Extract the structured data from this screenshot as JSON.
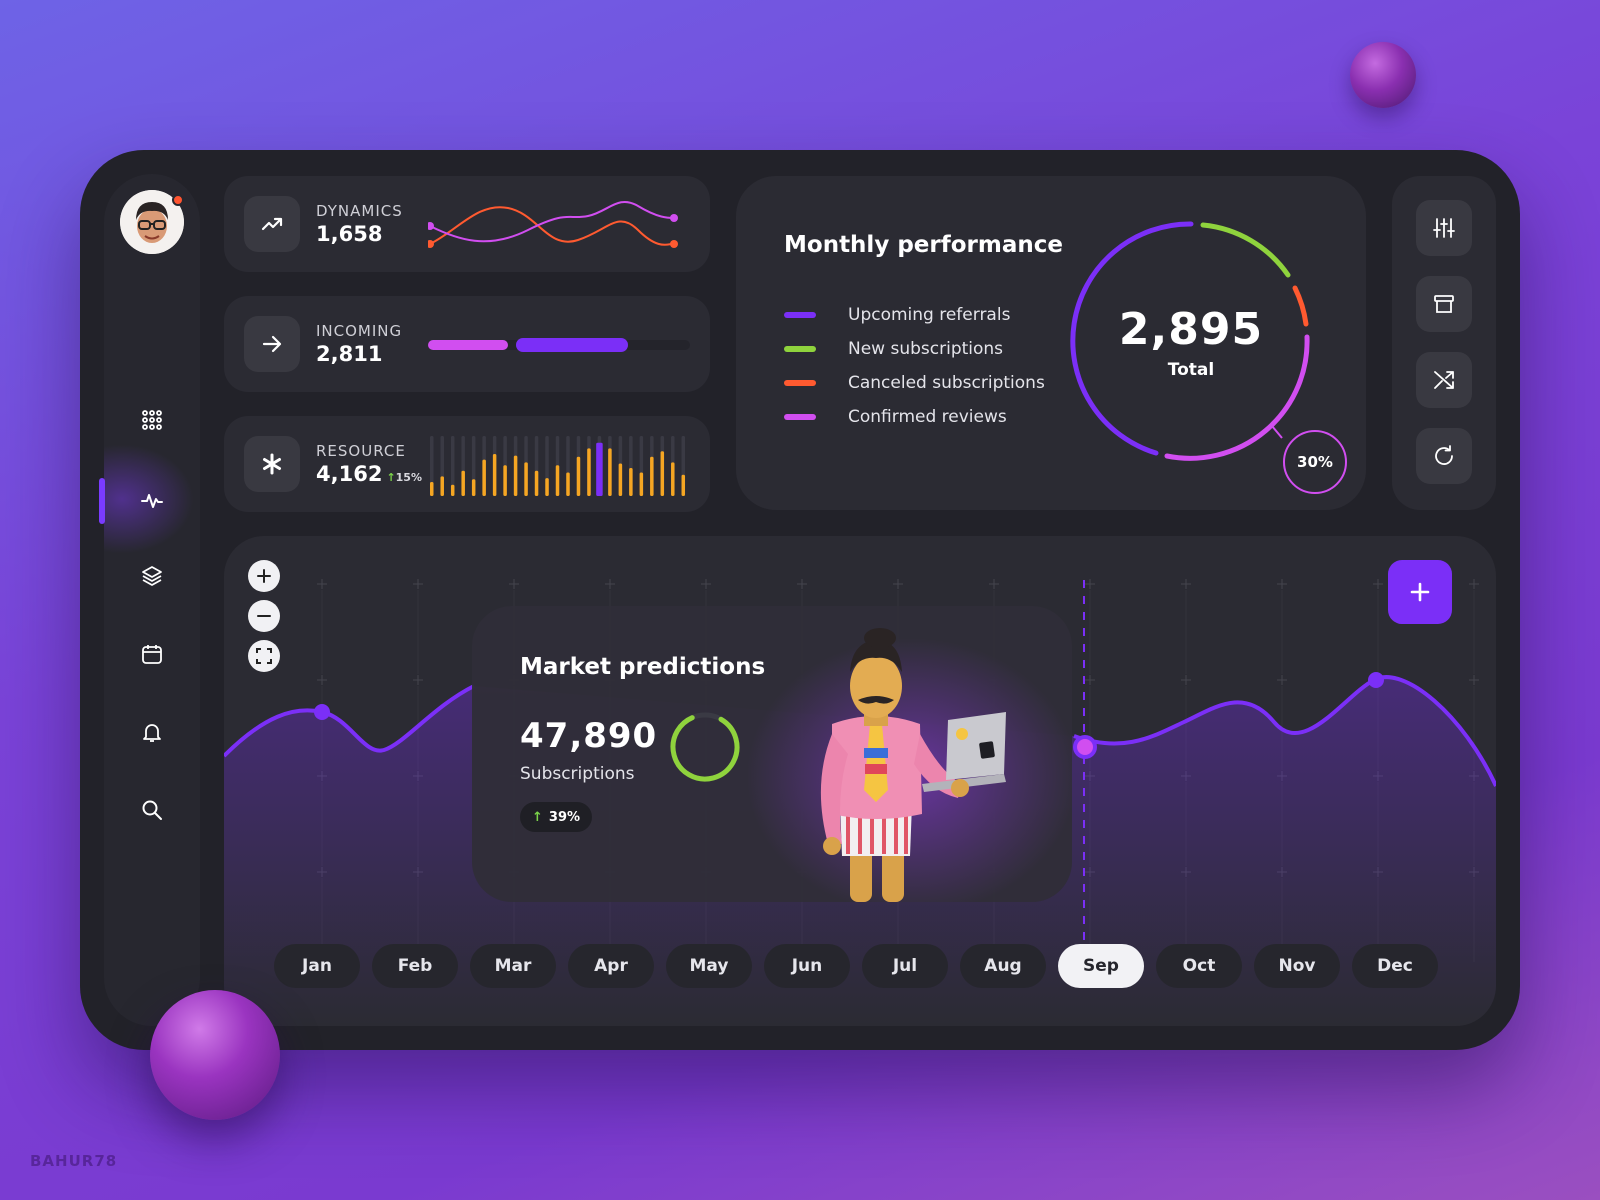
{
  "stats": {
    "dynamics": {
      "label": "DYNAMICS",
      "value": "1,658",
      "icon": "trend-up-icon"
    },
    "incoming": {
      "label": "INCOMING",
      "value": "2,811",
      "icon": "arrow-right-icon",
      "progress_fraction": 0.52
    },
    "resource": {
      "label": "RESOURCE",
      "value": "4,162",
      "change": "15%",
      "icon": "asterisk-icon"
    }
  },
  "performance": {
    "title": "Monthly performance",
    "legend": [
      {
        "label": "Upcoming referrals",
        "color": "#7b2ff7"
      },
      {
        "label": "New subscriptions",
        "color": "#8fd33d"
      },
      {
        "label": "Canceled subscriptions",
        "color": "#ff5a30"
      },
      {
        "label": "Confirmed reviews",
        "color": "#d14ef0"
      }
    ],
    "total_value": "2,895",
    "total_label": "Total",
    "percent": "30%"
  },
  "toolbar": {
    "items": [
      "sliders-icon",
      "archive-icon",
      "shuffle-icon",
      "refresh-icon"
    ]
  },
  "sidebar": {
    "items": [
      "grid-icon",
      "activity-icon",
      "layers-icon",
      "calendar-icon",
      "bell-icon",
      "search-icon"
    ],
    "active": "activity-icon"
  },
  "market": {
    "title": "Market predictions",
    "value": "47,890",
    "caption": "Subscriptions",
    "change": "39%",
    "ring_fraction": 0.85,
    "zoom": [
      "plus-icon",
      "minus-icon",
      "fit-screen-icon"
    ],
    "add_icon": "plus-icon"
  },
  "months": {
    "items": [
      "Jan",
      "Feb",
      "Mar",
      "Apr",
      "May",
      "Jun",
      "Jul",
      "Aug",
      "Sep",
      "Oct",
      "Nov",
      "Dec"
    ],
    "selected": "Sep"
  },
  "watermark": "BAHUR78",
  "colors": {
    "accent": "#7b2ff7",
    "magenta": "#d14ef0",
    "green": "#8fd33d",
    "orange": "#ff5a30",
    "amber": "#f5a623",
    "panel": "#222229",
    "card": "#2b2b33"
  }
}
